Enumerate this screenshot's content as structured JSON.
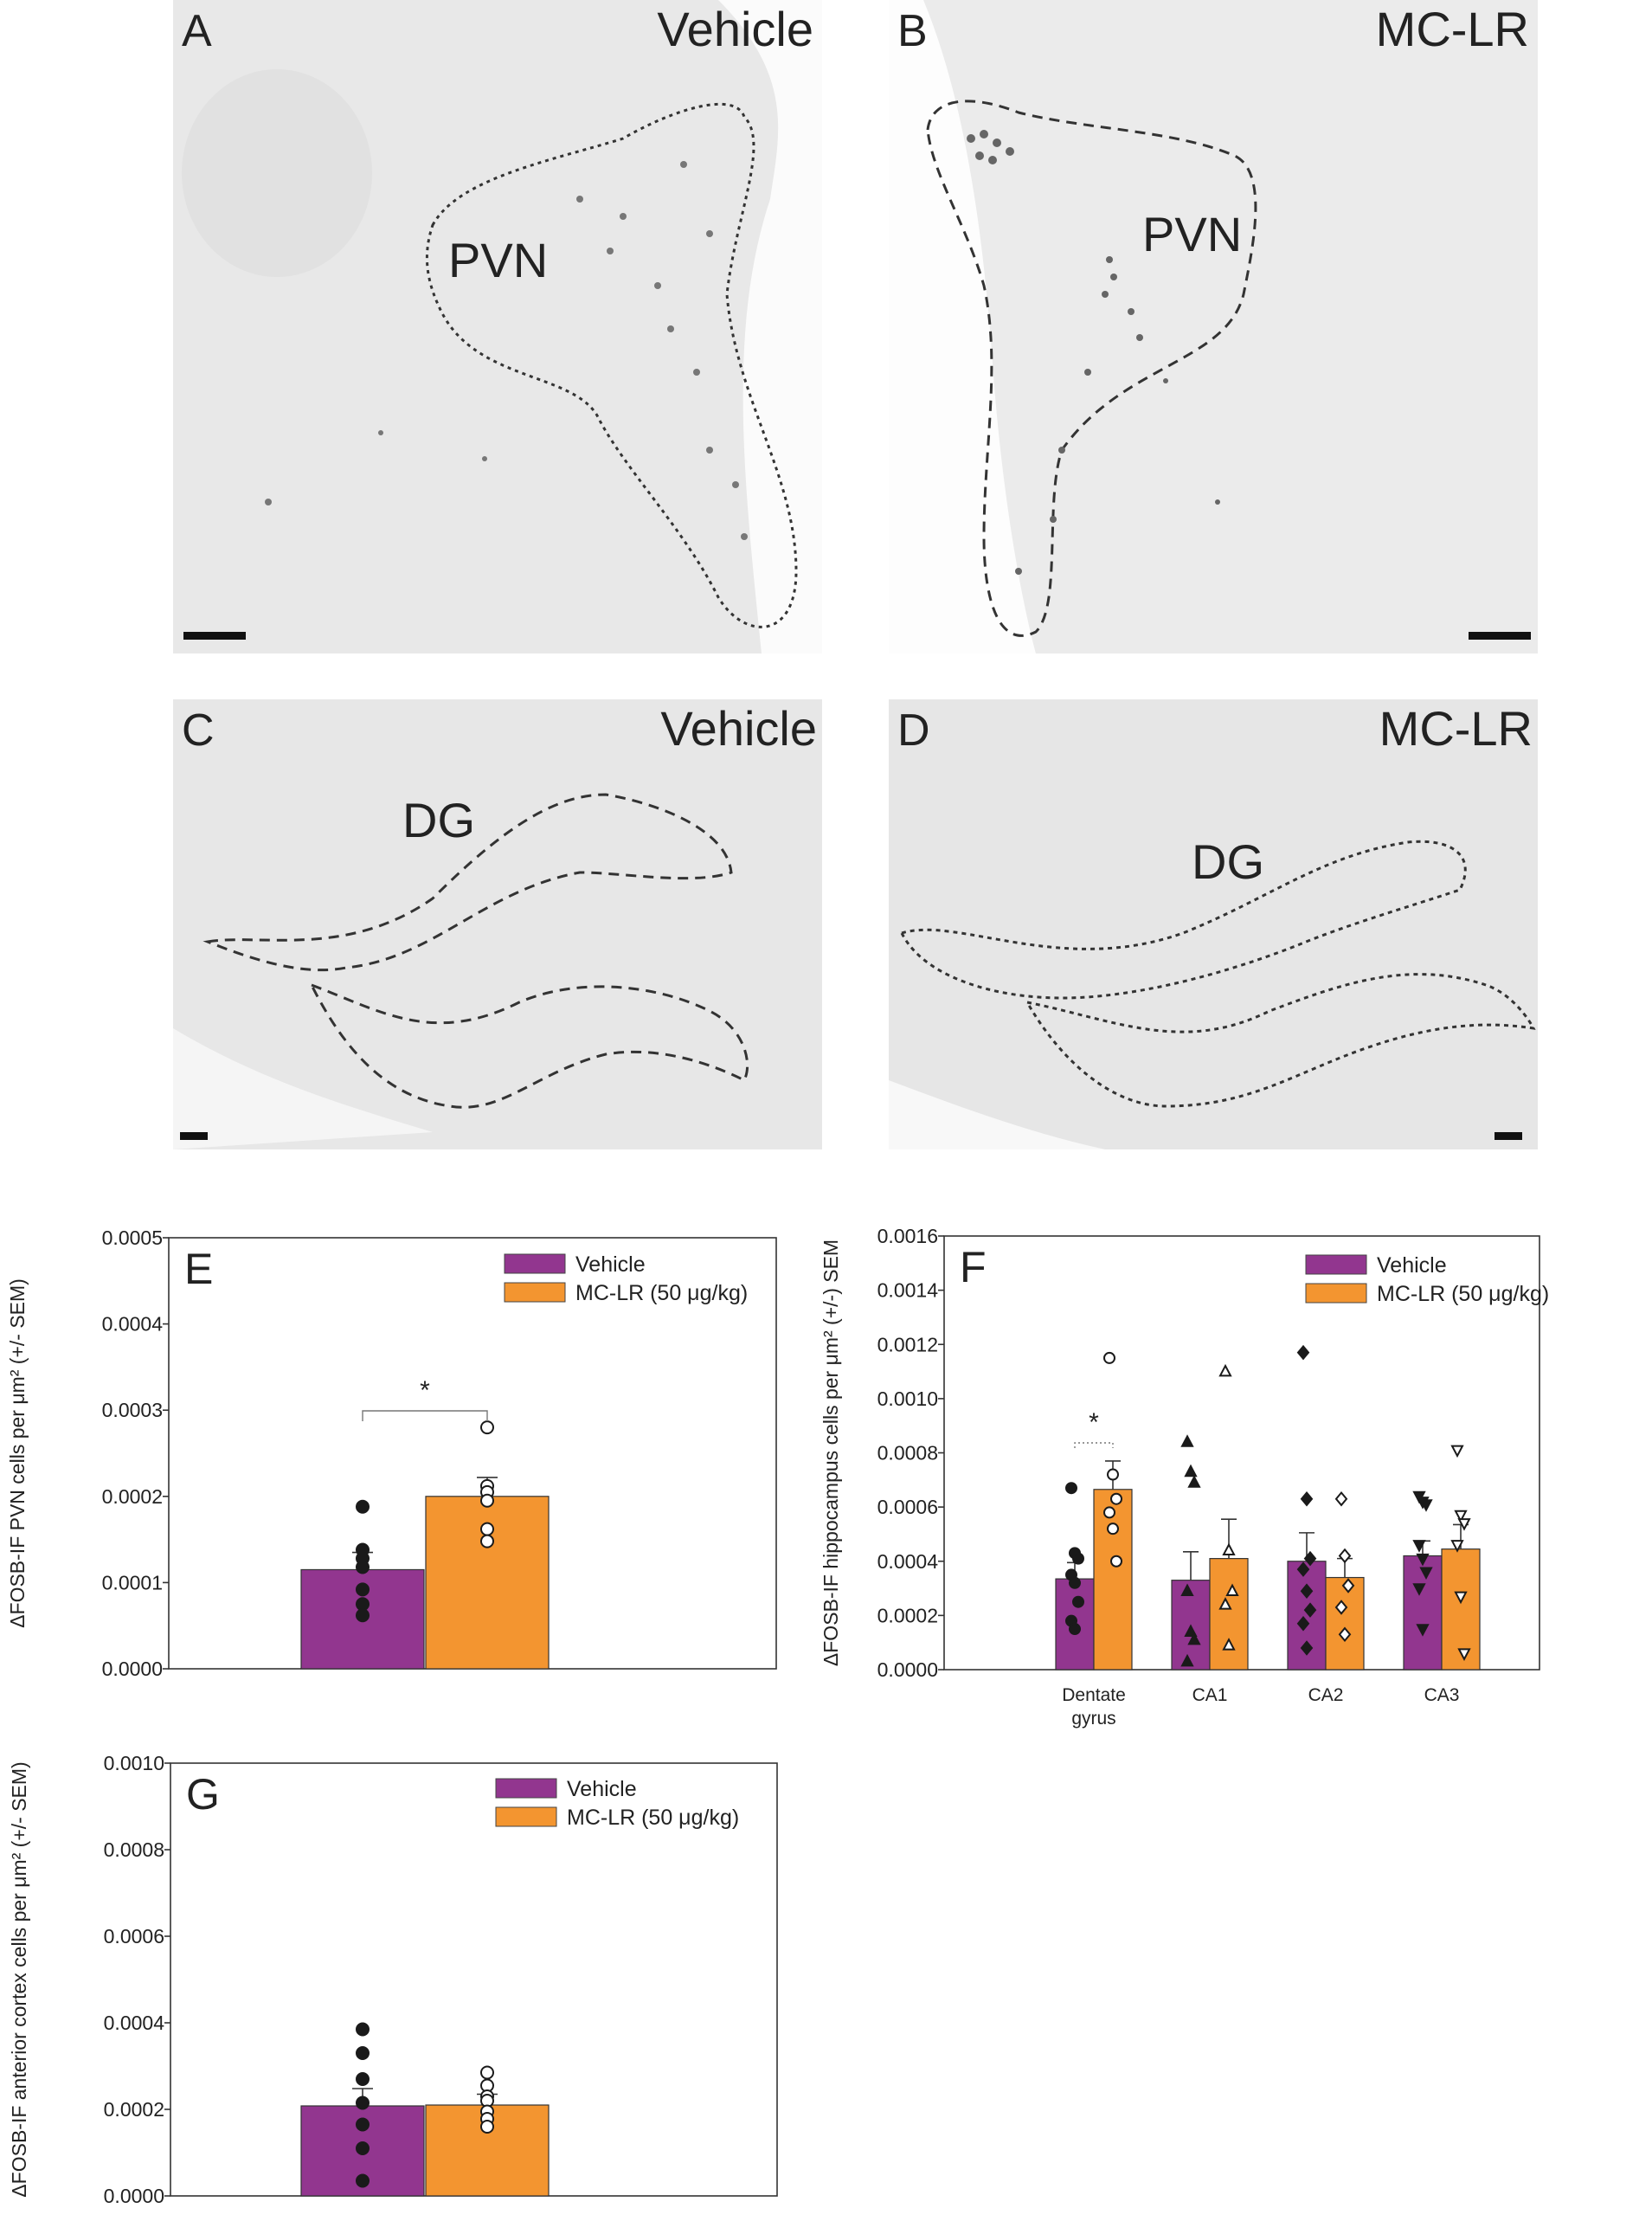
{
  "micrographs": [
    {
      "letter": "A",
      "treatment": "Vehicle",
      "region": "PVN"
    },
    {
      "letter": "B",
      "treatment": "MC-LR",
      "region": "PVN"
    },
    {
      "letter": "C",
      "treatment": "Vehicle",
      "region": "DG"
    },
    {
      "letter": "D",
      "treatment": "MC-LR",
      "region": "DG"
    }
  ],
  "colors": {
    "vehicle": "#92368f",
    "mclr": "#f39530"
  },
  "chart_data": [
    {
      "type": "bar",
      "panel": "E",
      "ylabel": "ΔFOSB-IF PVN cells per μm² (+/- SEM)",
      "ylim": [
        0,
        0.0005
      ],
      "yticks": [
        "0.0000",
        "0.0001",
        "0.0002",
        "0.0003",
        "0.0004",
        "0.0005"
      ],
      "legend": [
        "Vehicle",
        "MC-LR (50 μg/kg)"
      ],
      "categories": [
        ""
      ],
      "series": [
        {
          "name": "Vehicle",
          "values": [
            0.000115
          ],
          "sem": [
            2e-05
          ],
          "points": [
            0.000188,
            0.000138,
            0.000128,
            0.000118,
            9.2e-05,
            7.5e-05,
            6.2e-05
          ]
        },
        {
          "name": "MC-LR (50 μg/kg)",
          "values": [
            0.0002
          ],
          "sem": [
            2.2e-05
          ],
          "points": [
            0.00028,
            0.000212,
            0.000205,
            0.000195,
            0.000162,
            0.000148
          ]
        }
      ],
      "significance": "*"
    },
    {
      "type": "bar",
      "panel": "F",
      "ylabel": "ΔFOSB-IF hippocampus cells per μm² (+/-) SEM",
      "ylim": [
        0,
        0.0016
      ],
      "yticks": [
        "0.0000",
        "0.0002",
        "0.0004",
        "0.0006",
        "0.0008",
        "0.0010",
        "0.0012",
        "0.0014",
        "0.0016"
      ],
      "legend": [
        "Vehicle",
        "MC-LR (50 μg/kg)"
      ],
      "categories": [
        "Dentate gyrus",
        "CA1",
        "CA2",
        "CA3"
      ],
      "series": [
        {
          "name": "Vehicle",
          "values": [
            0.000335,
            0.00033,
            0.0004,
            0.00042
          ],
          "sem": [
            6e-05,
            0.000105,
            0.000105,
            5.5e-05
          ],
          "points": [
            [
              0.00067,
              0.00043,
              0.00041,
              0.00035,
              0.00032,
              0.00025,
              0.00018,
              0.00015
            ],
            [
              0.00084,
              0.00073,
              0.00069,
              0.00029,
              0.00014,
              0.00011,
              3e-05
            ],
            [
              0.00117,
              0.00063,
              0.00041,
              0.00037,
              0.00029,
              0.00022,
              0.00017,
              8e-05
            ],
            [
              0.00064,
              0.00062,
              0.00061,
              0.00046,
              0.00041,
              0.00036,
              0.0003,
              0.00015
            ]
          ]
        },
        {
          "name": "MC-LR (50 μg/kg)",
          "values": [
            0.000665,
            0.00041,
            0.00034,
            0.000445
          ],
          "sem": [
            0.000105,
            0.000145,
            7e-05,
            9e-05
          ],
          "points": [
            [
              0.00115,
              0.00072,
              0.00063,
              0.00058,
              0.00052,
              0.0004
            ],
            [
              0.0011,
              0.00044,
              0.00029,
              0.00024,
              9e-05
            ],
            [
              0.00063,
              0.00042,
              0.00031,
              0.00023,
              0.00013
            ],
            [
              0.00081,
              0.00057,
              0.00054,
              0.00046,
              0.00027,
              6e-05
            ]
          ]
        }
      ],
      "significance": "*",
      "significance_category": "Dentate gyrus"
    },
    {
      "type": "bar",
      "panel": "G",
      "ylabel": "ΔFOSB-IF anterior cortex cells per μm² (+/- SEM)",
      "ylim": [
        0,
        0.001
      ],
      "yticks": [
        "0.0000",
        "0.0002",
        "0.0004",
        "0.0006",
        "0.0008",
        "0.0010"
      ],
      "legend": [
        "Vehicle",
        "MC-LR (50 μg/kg)"
      ],
      "categories": [
        ""
      ],
      "series": [
        {
          "name": "Vehicle",
          "values": [
            0.000208
          ],
          "sem": [
            4e-05
          ],
          "points": [
            0.000385,
            0.00033,
            0.00027,
            0.000215,
            0.000165,
            0.00011,
            3.5e-05
          ]
        },
        {
          "name": "MC-LR (50 μg/kg)",
          "values": [
            0.00021
          ],
          "sem": [
            2.5e-05
          ],
          "points": [
            0.000285,
            0.000255,
            0.00023,
            0.00022,
            0.000195,
            0.000178,
            0.00016
          ]
        }
      ]
    }
  ]
}
